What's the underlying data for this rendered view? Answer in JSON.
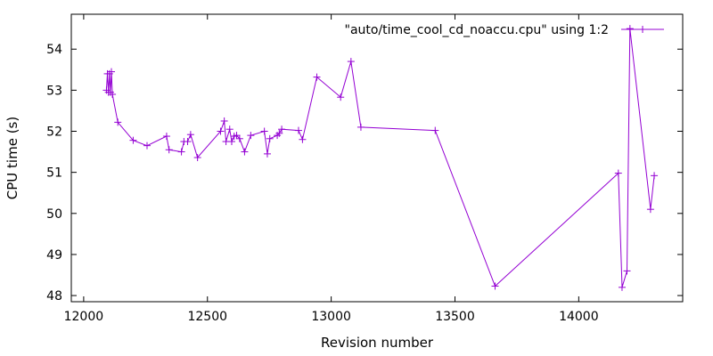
{
  "chart_data": {
    "type": "line",
    "title": "",
    "xlabel": "Revision number",
    "ylabel": "CPU time (s)",
    "xlim": [
      11950,
      14420
    ],
    "ylim": [
      47.85,
      54.85
    ],
    "x_ticks": [
      12000,
      12500,
      13000,
      13500,
      14000
    ],
    "y_ticks": [
      48,
      49,
      50,
      51,
      52,
      53,
      54
    ],
    "grid": false,
    "legend_position": "top-right",
    "series": [
      {
        "name": "\"auto/time_cool_cd_noaccu.cpu\" using 1:2",
        "color": "#9400d3",
        "marker": "plus",
        "points": [
          [
            12092,
            53.0
          ],
          [
            12096,
            53.4
          ],
          [
            12100,
            52.95
          ],
          [
            12104,
            53.4
          ],
          [
            12108,
            52.95
          ],
          [
            12112,
            53.45
          ],
          [
            12116,
            52.9
          ],
          [
            12138,
            52.22
          ],
          [
            12200,
            51.78
          ],
          [
            12256,
            51.65
          ],
          [
            12335,
            51.88
          ],
          [
            12345,
            51.55
          ],
          [
            12395,
            51.5
          ],
          [
            12405,
            51.75
          ],
          [
            12420,
            51.75
          ],
          [
            12432,
            51.92
          ],
          [
            12460,
            51.36
          ],
          [
            12553,
            52.0
          ],
          [
            12568,
            52.25
          ],
          [
            12575,
            51.75
          ],
          [
            12590,
            52.05
          ],
          [
            12598,
            51.75
          ],
          [
            12608,
            51.88
          ],
          [
            12618,
            51.9
          ],
          [
            12630,
            51.82
          ],
          [
            12650,
            51.5
          ],
          [
            12675,
            51.9
          ],
          [
            12730,
            52.0
          ],
          [
            12742,
            51.45
          ],
          [
            12752,
            51.82
          ],
          [
            12782,
            51.9
          ],
          [
            12790,
            51.95
          ],
          [
            12800,
            52.05
          ],
          [
            12868,
            52.02
          ],
          [
            12884,
            51.8
          ],
          [
            12942,
            53.32
          ],
          [
            13038,
            52.83
          ],
          [
            13080,
            53.7
          ],
          [
            13120,
            52.1
          ],
          [
            13420,
            52.02
          ],
          [
            13662,
            48.23
          ],
          [
            14160,
            50.98
          ],
          [
            14175,
            48.2
          ],
          [
            14195,
            48.6
          ],
          [
            14207,
            54.5
          ],
          [
            14290,
            50.1
          ],
          [
            14305,
            50.92
          ]
        ]
      }
    ]
  }
}
